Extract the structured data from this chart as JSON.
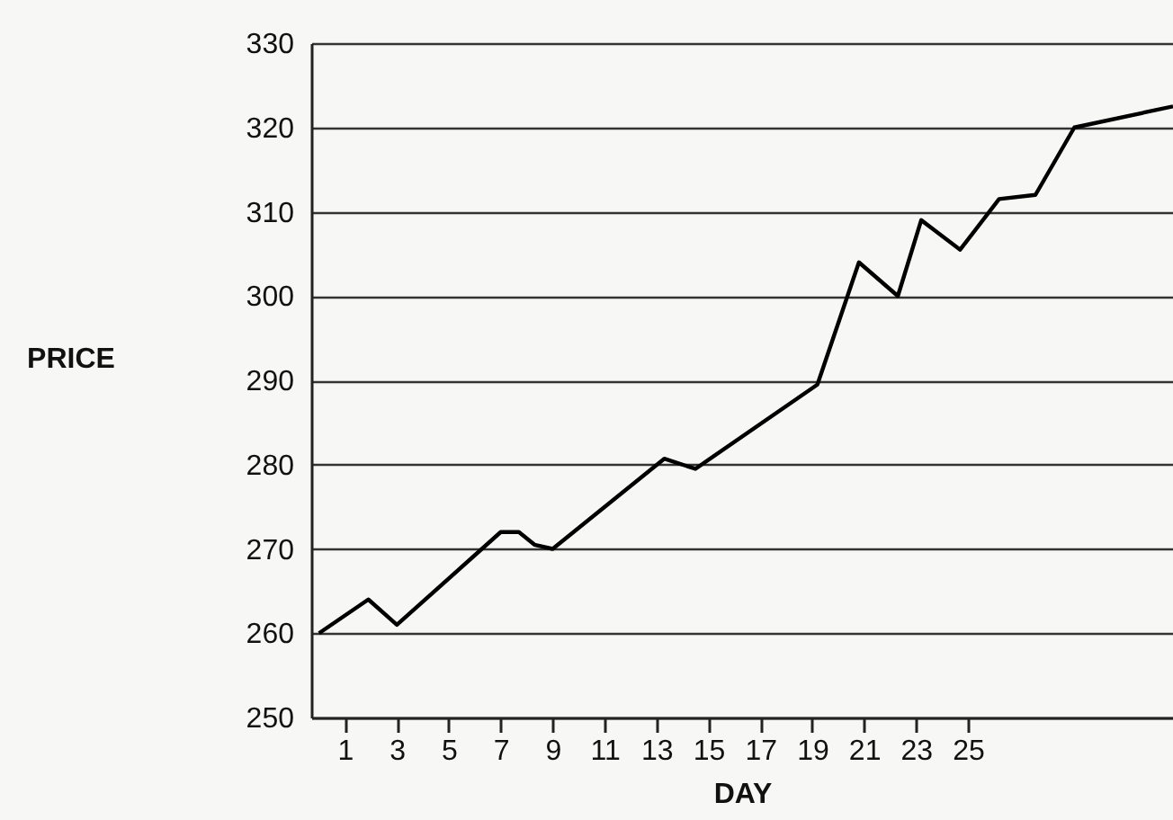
{
  "chart_data": {
    "type": "line",
    "xlabel": "DAY",
    "ylabel": "PRICE",
    "x": [
      0,
      1.9,
      3,
      7,
      7.7,
      8.3,
      9,
      13.3,
      14.5,
      19.2,
      20.8,
      22.3,
      23.2,
      24.7,
      26.2,
      27.6,
      29.1,
      32.9
    ],
    "series": [
      {
        "color": "#000000",
        "values": [
          260,
          264,
          261,
          272,
          272,
          270.5,
          270,
          280.7,
          279.5,
          289.5,
          304,
          300,
          309,
          305.5,
          311.5,
          312,
          320,
          322.5
        ]
      }
    ],
    "xlim": [
      -0.3,
      32.9
    ],
    "xticks": [
      1,
      3,
      5,
      7,
      9,
      11,
      13,
      15,
      17,
      19,
      21,
      23,
      25
    ],
    "ylim": [
      250,
      330
    ],
    "yticks": [
      250,
      260,
      270,
      280,
      290,
      300,
      310,
      320,
      330
    ],
    "grid": "y",
    "marker": "none",
    "line_style": "solid"
  }
}
